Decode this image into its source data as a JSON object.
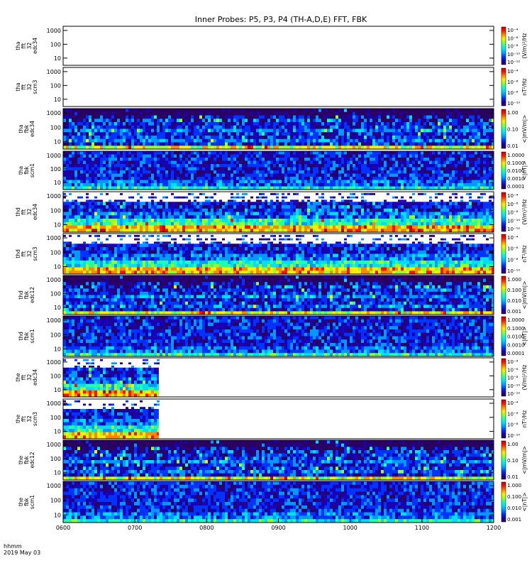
{
  "title": "Inner Probes: P5, P3, P4 (TH-A,D,E) FFT, FBK",
  "time_axis": {
    "label_line1": "hhmm",
    "label_line2": "2019 May 03",
    "ticks": [
      "0600",
      "0700",
      "0800",
      "0900",
      "1000",
      "1100",
      "1200"
    ]
  },
  "chart_data": {
    "type": "heatmap",
    "title": "Inner Probes: P5, P3, P4 (TH-A,D,E) FFT, FBK",
    "x_range_hhmm": [
      "0600",
      "1200"
    ],
    "y_scale": "log",
    "panels": [
      {
        "id": "p1",
        "label": [
          "tha",
          "fft",
          "32",
          "edc34"
        ],
        "y_ticks": [
          "1000",
          "100",
          "10"
        ],
        "y_range": [
          3,
          2000
        ],
        "unit": "(V/m)²/Hz",
        "cbar_ticks": [
          "10⁻⁴",
          "10⁻⁶",
          "10⁻⁸",
          "10⁻¹⁰",
          "10⁻¹²"
        ],
        "data": "empty"
      },
      {
        "id": "p2",
        "label": [
          "tha",
          "fft",
          "32",
          "scm3"
        ],
        "y_ticks": [
          "1000",
          "100",
          "10"
        ],
        "y_range": [
          3,
          2000
        ],
        "unit": "nT²/Hz",
        "cbar_ticks": [
          "10⁻⁴",
          "10⁻⁶",
          "10⁻⁸",
          "10⁻¹⁰"
        ],
        "data": "empty"
      },
      {
        "id": "p3",
        "label": [
          "tha",
          "fbk",
          "edc34"
        ],
        "y_ticks": [
          "1000",
          "100",
          "10"
        ],
        "y_range": [
          3,
          2000
        ],
        "unit": "<|mV/m|>",
        "cbar_ticks": [
          "1.00",
          "0.10",
          "0.01"
        ],
        "data": "full",
        "extent_end_hhmm": "1200"
      },
      {
        "id": "p4",
        "label": [
          "tha",
          "fbk",
          "scm1"
        ],
        "y_ticks": [
          "1000",
          "100",
          "10"
        ],
        "y_range": [
          3,
          2000
        ],
        "unit": "<|nT|>",
        "cbar_ticks": [
          "1.0000",
          "0.1000",
          "0.0100",
          "0.0010",
          "0.0001"
        ],
        "data": "full",
        "extent_end_hhmm": "1200"
      },
      {
        "id": "p5",
        "label": [
          "thd",
          "fft",
          "32",
          "edc34"
        ],
        "y_ticks": [
          "1000",
          "100",
          "10"
        ],
        "y_range": [
          3,
          2000
        ],
        "unit": "(V/m)²/Hz",
        "cbar_ticks": [
          "10⁻⁴",
          "10⁻⁶",
          "10⁻⁸",
          "10⁻¹⁰",
          "10⁻¹²"
        ],
        "data": "full",
        "extent_end_hhmm": "1200"
      },
      {
        "id": "p6",
        "label": [
          "thd",
          "fft",
          "32",
          "scm3"
        ],
        "y_ticks": [
          "1000",
          "100",
          "10"
        ],
        "y_range": [
          3,
          2000
        ],
        "unit": "nT²/Hz",
        "cbar_ticks": [
          "10⁻⁴",
          "10⁻⁶",
          "10⁻⁸",
          "10⁻¹⁰"
        ],
        "data": "full",
        "extent_end_hhmm": "1200"
      },
      {
        "id": "p7",
        "label": [
          "thd",
          "fbk",
          "edc12"
        ],
        "y_ticks": [
          "1000",
          "100",
          "10"
        ],
        "y_range": [
          3,
          2000
        ],
        "unit": "<|mV/m|>",
        "cbar_ticks": [
          "1.000",
          "0.100",
          "0.010",
          "0.001"
        ],
        "data": "full",
        "extent_end_hhmm": "1200"
      },
      {
        "id": "p8",
        "label": [
          "thd",
          "fbk",
          "scm1"
        ],
        "y_ticks": [
          "1000",
          "100",
          "10"
        ],
        "y_range": [
          3,
          2000
        ],
        "unit": "<|nT|>",
        "cbar_ticks": [
          "1.0000",
          "0.1000",
          "0.0100",
          "0.0010",
          "0.0001"
        ],
        "data": "full",
        "extent_end_hhmm": "1200"
      },
      {
        "id": "p9",
        "label": [
          "the",
          "fft",
          "32",
          "edc34"
        ],
        "y_ticks": [
          "1000",
          "100",
          "10"
        ],
        "y_range": [
          3,
          2000
        ],
        "unit": "(V/m)²/Hz",
        "cbar_ticks": [
          "10⁻⁴",
          "10⁻⁶",
          "10⁻⁸",
          "10⁻¹⁰",
          "10⁻¹²"
        ],
        "data": "partial",
        "extent_end_hhmm": "0720"
      },
      {
        "id": "p10",
        "label": [
          "the",
          "fft",
          "32",
          "scm3"
        ],
        "y_ticks": [
          "1000",
          "100",
          "10"
        ],
        "y_range": [
          3,
          2000
        ],
        "unit": "nT²/Hz",
        "cbar_ticks": [
          "10⁻⁴",
          "10⁻⁶",
          "10⁻⁸",
          "10⁻¹⁰"
        ],
        "data": "partial",
        "extent_end_hhmm": "0720"
      },
      {
        "id": "p11",
        "label": [
          "the",
          "fbk",
          "edc12"
        ],
        "y_ticks": [
          "1000",
          "100",
          "10"
        ],
        "y_range": [
          3,
          2000
        ],
        "unit": "<|mV/m|>",
        "cbar_ticks": [
          "1.00",
          "0.10",
          "0.01"
        ],
        "data": "full",
        "extent_end_hhmm": "1200"
      },
      {
        "id": "p12",
        "label": [
          "the",
          "fbk",
          "scm1"
        ],
        "y_ticks": [
          "1000",
          "100",
          "10"
        ],
        "y_range": [
          3,
          2000
        ],
        "unit": "<|nT|>",
        "cbar_ticks": [
          "1.000",
          "0.100",
          "0.010",
          "0.001"
        ],
        "data": "full",
        "extent_end_hhmm": "1200"
      }
    ]
  }
}
